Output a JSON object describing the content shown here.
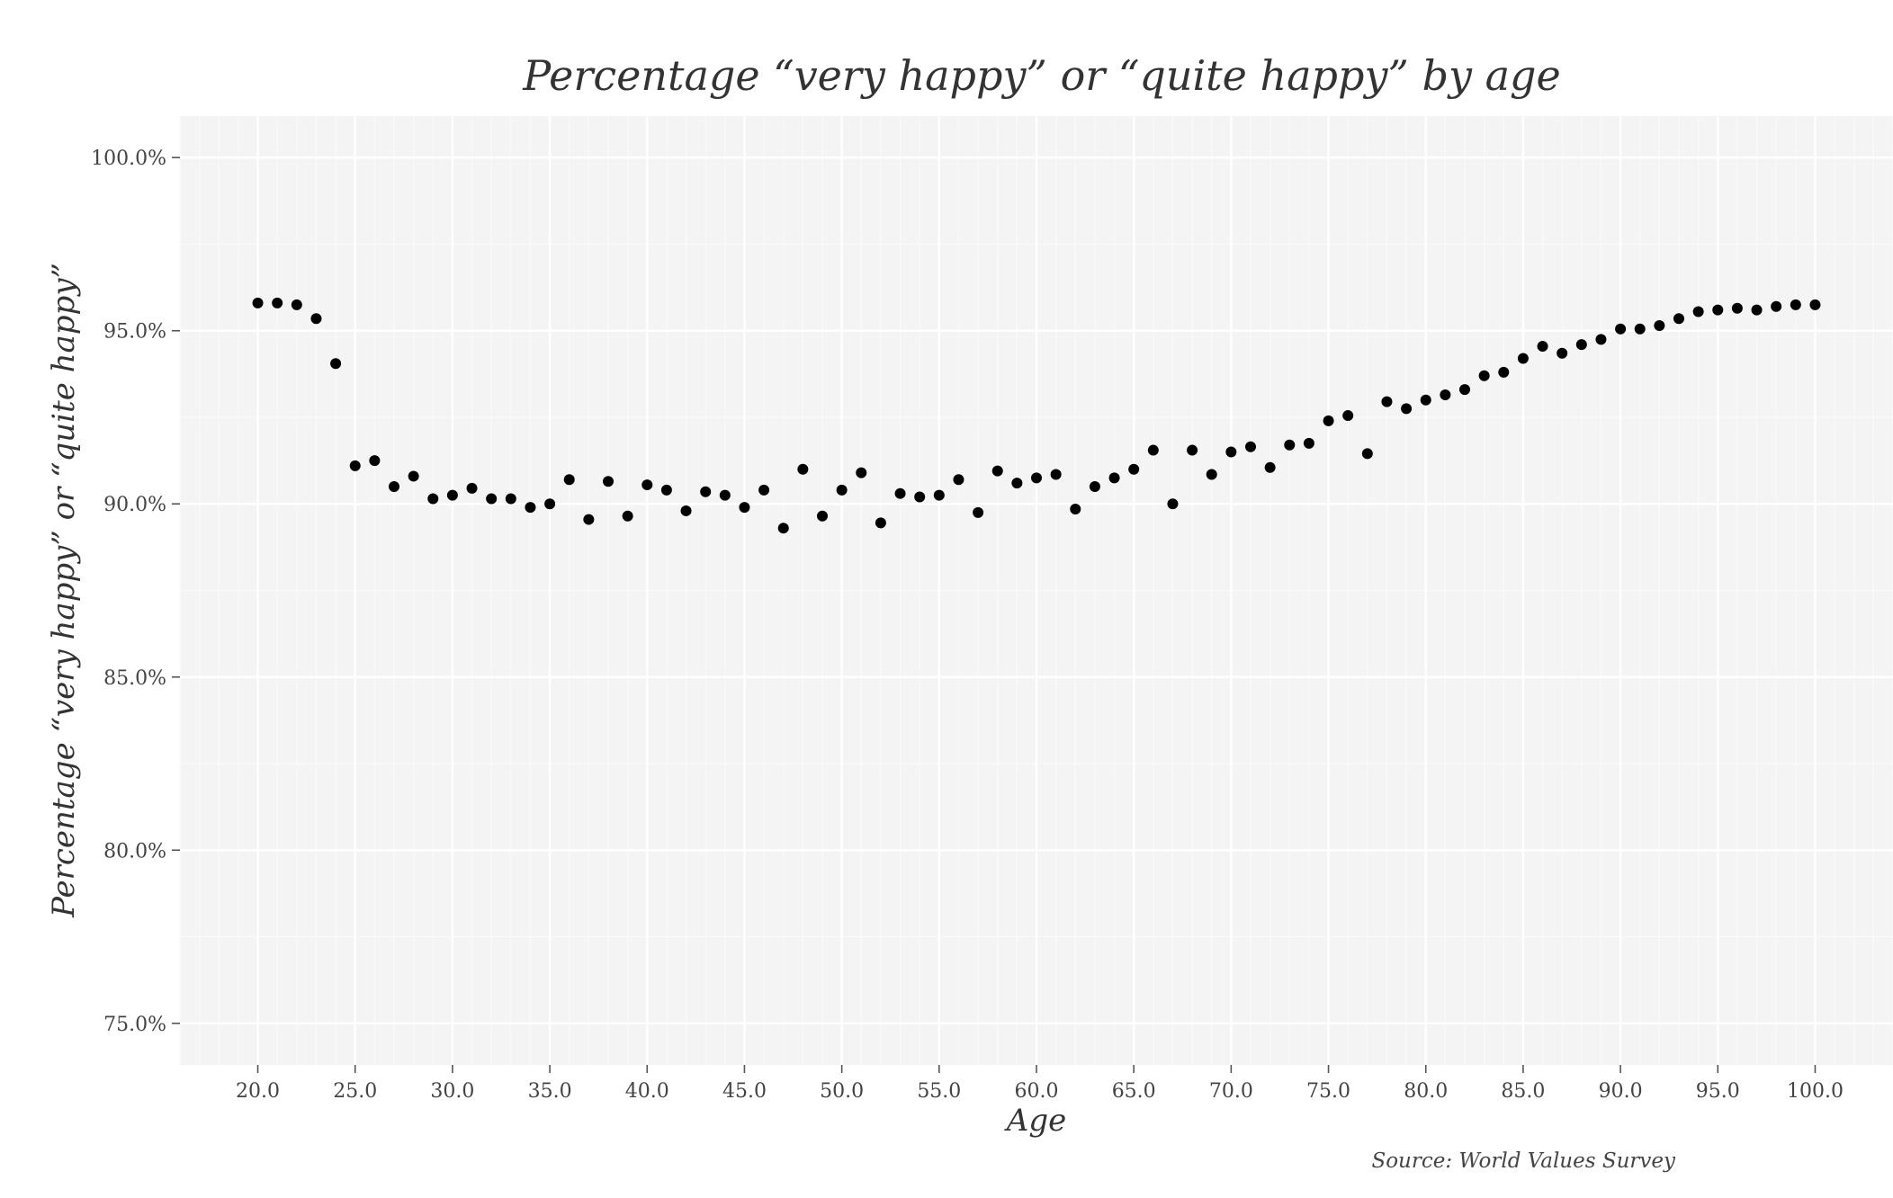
{
  "chart_data": {
    "type": "scatter",
    "title": "Percentage “very happy” or “quite happy” by age",
    "xlabel": "Age",
    "ylabel": "Percentage “very happy” or “quite happy”",
    "caption": "Source: World Values Survey",
    "xlim": [
      16,
      104
    ],
    "ylim": [
      73.8,
      101.2
    ],
    "x_ticks": [
      20,
      25,
      30,
      35,
      40,
      45,
      50,
      55,
      60,
      65,
      70,
      75,
      80,
      85,
      90,
      95,
      100
    ],
    "x_tick_labels": [
      "20.0",
      "25.0",
      "30.0",
      "35.0",
      "40.0",
      "45.0",
      "50.0",
      "55.0",
      "60.0",
      "65.0",
      "70.0",
      "75.0",
      "80.0",
      "85.0",
      "90.0",
      "95.0",
      "100.0"
    ],
    "y_ticks": [
      75,
      80,
      85,
      90,
      95,
      100
    ],
    "y_tick_labels": [
      "75.0%",
      "80.0%",
      "85.0%",
      "90.0%",
      "95.0%",
      "100.0%"
    ],
    "grid": true,
    "background_color": "#f4f4f4",
    "point_color": "#000000",
    "series": [
      {
        "x": [
          20,
          21,
          22,
          23,
          24,
          25,
          26,
          27,
          28,
          29,
          30,
          31,
          32,
          33,
          34,
          35,
          36,
          37,
          38,
          39,
          40,
          41,
          42,
          43,
          44,
          45,
          46,
          47,
          48,
          49,
          50,
          51,
          52,
          53,
          54,
          55,
          56,
          57,
          58,
          59,
          60,
          61,
          62,
          63,
          64,
          65,
          66,
          67,
          68,
          69,
          70,
          71,
          72,
          73,
          74,
          75,
          76,
          77,
          78,
          79,
          80,
          81,
          82,
          83,
          84,
          85,
          86,
          87,
          88,
          89,
          90,
          91,
          92,
          93,
          94,
          95,
          96,
          97,
          98,
          99,
          100
        ],
        "y": [
          95.8,
          95.8,
          95.75,
          95.35,
          94.05,
          91.1,
          91.25,
          90.5,
          90.8,
          90.15,
          90.25,
          90.45,
          90.15,
          90.15,
          89.9,
          90.0,
          90.7,
          89.55,
          90.65,
          89.65,
          90.55,
          90.4,
          89.8,
          90.35,
          90.25,
          89.9,
          90.4,
          89.3,
          91.0,
          89.65,
          90.4,
          90.9,
          89.45,
          90.3,
          90.2,
          90.25,
          90.7,
          89.75,
          90.95,
          90.6,
          90.75,
          90.85,
          89.85,
          90.5,
          90.75,
          91.0,
          91.55,
          90.0,
          91.55,
          90.85,
          91.5,
          91.65,
          91.05,
          91.7,
          91.75,
          92.4,
          92.55,
          91.45,
          92.95,
          92.75,
          93.0,
          93.15,
          93.3,
          93.7,
          93.8,
          94.2,
          94.55,
          94.35,
          94.6,
          94.75,
          95.05,
          95.05,
          95.15,
          95.35,
          95.55,
          95.6,
          95.65,
          95.6,
          95.7,
          95.75,
          95.75
        ]
      }
    ]
  }
}
